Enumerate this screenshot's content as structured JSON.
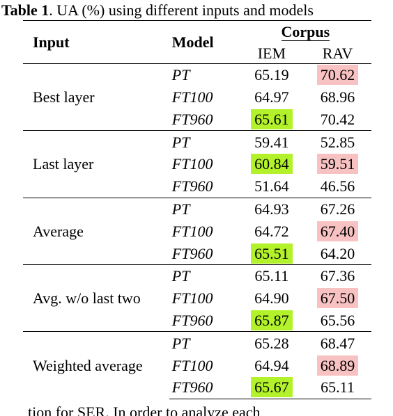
{
  "caption": {
    "label": "Table 1",
    "text": ". UA (%) using different inputs and models"
  },
  "table": {
    "headers": {
      "input": "Input",
      "model": "Model",
      "corpus": "Corpus",
      "iem": "IEM",
      "rav": "RAV"
    },
    "groups": [
      {
        "input": "Best layer",
        "rows": [
          {
            "model": "PT",
            "iem": "65.19",
            "rav": "70.62",
            "iem_hl": "",
            "rav_hl": "pink"
          },
          {
            "model": "FT100",
            "iem": "64.97",
            "rav": "68.96",
            "iem_hl": "",
            "rav_hl": ""
          },
          {
            "model": "FT960",
            "iem": "65.61",
            "rav": "70.42",
            "iem_hl": "green",
            "rav_hl": ""
          }
        ]
      },
      {
        "input": "Last layer",
        "rows": [
          {
            "model": "PT",
            "iem": "59.41",
            "rav": "52.85",
            "iem_hl": "",
            "rav_hl": ""
          },
          {
            "model": "FT100",
            "iem": "60.84",
            "rav": "59.51",
            "iem_hl": "green",
            "rav_hl": "pink"
          },
          {
            "model": "FT960",
            "iem": "51.64",
            "rav": "46.56",
            "iem_hl": "",
            "rav_hl": ""
          }
        ]
      },
      {
        "input": "Average",
        "rows": [
          {
            "model": "PT",
            "iem": "64.93",
            "rav": "67.26",
            "iem_hl": "",
            "rav_hl": ""
          },
          {
            "model": "FT100",
            "iem": "64.72",
            "rav": "67.40",
            "iem_hl": "",
            "rav_hl": "pink"
          },
          {
            "model": "FT960",
            "iem": "65.51",
            "rav": "64.20",
            "iem_hl": "green",
            "rav_hl": ""
          }
        ]
      },
      {
        "input": "Avg. w/o last two",
        "rows": [
          {
            "model": "PT",
            "iem": "65.11",
            "rav": "67.36",
            "iem_hl": "",
            "rav_hl": ""
          },
          {
            "model": "FT100",
            "iem": "64.90",
            "rav": "67.50",
            "iem_hl": "",
            "rav_hl": "pink"
          },
          {
            "model": "FT960",
            "iem": "65.87",
            "rav": "65.56",
            "iem_hl": "green",
            "rav_hl": ""
          }
        ]
      },
      {
        "input": "Weighted average",
        "rows": [
          {
            "model": "PT",
            "iem": "65.28",
            "rav": "68.47",
            "iem_hl": "",
            "rav_hl": ""
          },
          {
            "model": "FT100",
            "iem": "64.94",
            "rav": "68.89",
            "iem_hl": "",
            "rav_hl": "pink"
          },
          {
            "model": "FT960",
            "iem": "65.67",
            "rav": "65.11",
            "iem_hl": "green",
            "rav_hl": ""
          }
        ]
      }
    ]
  },
  "footer_fragment": "tion for SER. In order to analyze each"
}
